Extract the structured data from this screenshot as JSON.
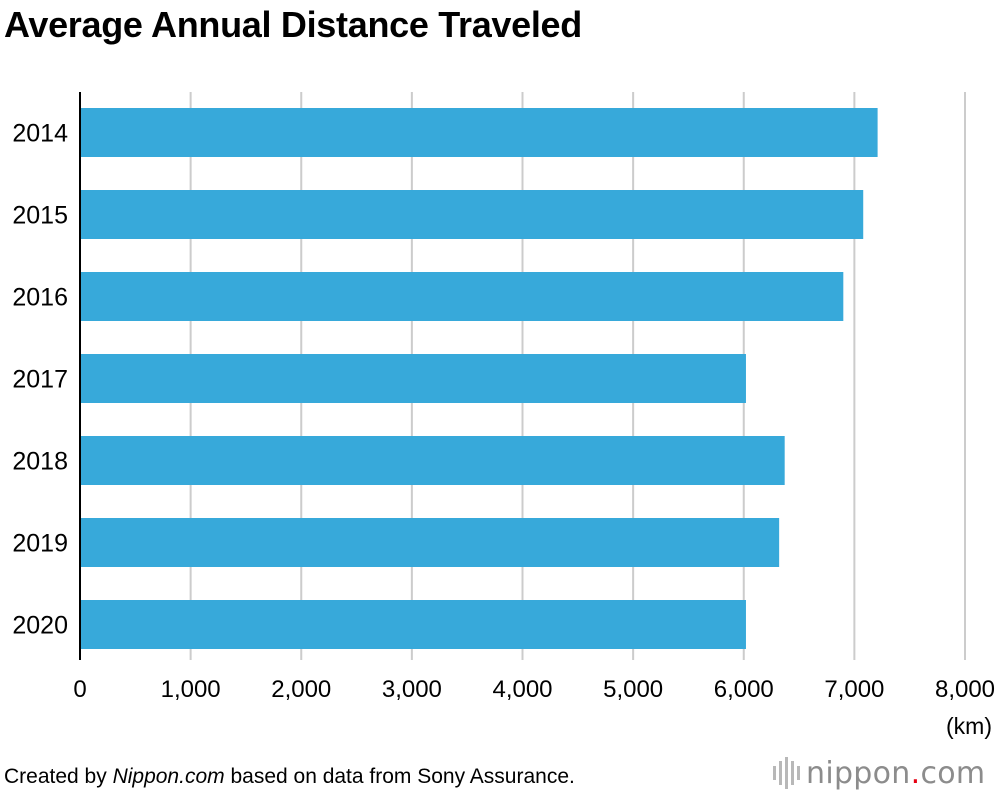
{
  "title": "Average Annual Distance Traveled",
  "unit_label": "(km)",
  "credit": {
    "prefix": "Created by ",
    "source_site": "Nippon.com",
    "suffix": " based on data from Sony Assurance."
  },
  "logo": {
    "name": "nippon",
    "dot": ".",
    "tld": "com",
    "icon": "sound-bars-icon"
  },
  "colors": {
    "bar": "#37a9da",
    "grid": "#cccccc",
    "axis": "#000000",
    "logo_text": "#8c8c8c",
    "logo_dot": "#e60012"
  },
  "chart_data": {
    "type": "bar",
    "orientation": "horizontal",
    "title": "Average Annual Distance Traveled",
    "categories": [
      "2014",
      "2015",
      "2016",
      "2017",
      "2018",
      "2019",
      "2020"
    ],
    "values": [
      7210,
      7080,
      6900,
      6020,
      6370,
      6320,
      6020
    ],
    "xlim": [
      0,
      8000
    ],
    "x_ticks": [
      0,
      1000,
      2000,
      3000,
      4000,
      5000,
      6000,
      7000,
      8000
    ],
    "x_tick_labels": [
      "0",
      "1,000",
      "2,000",
      "3,000",
      "4,000",
      "5,000",
      "6,000",
      "7,000",
      "8,000"
    ],
    "x_unit": "(km)",
    "grid": true,
    "legend": "none"
  }
}
